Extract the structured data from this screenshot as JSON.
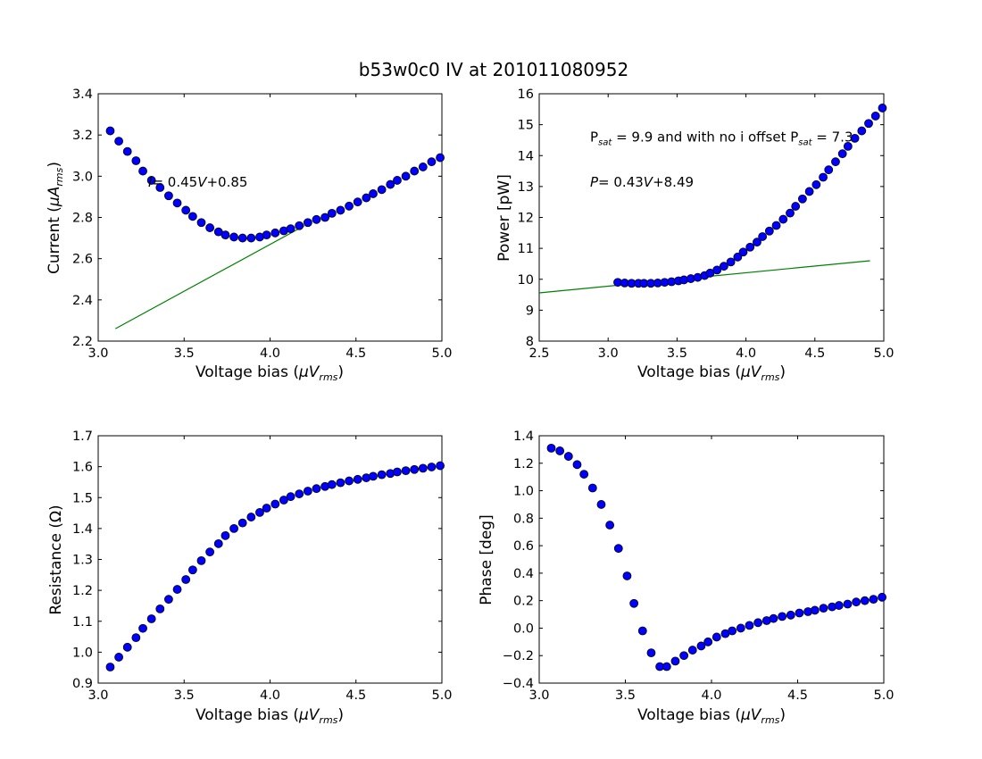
{
  "figure": {
    "title": "b53w0c0 IV at 201011080952"
  },
  "chart_data": [
    {
      "type": "scatter",
      "id": "iv",
      "xlabel": "Voltage bias ($\\mu V_{rms}$)",
      "ylabel": "Current ($\\mu A_{rms}$)",
      "xlim": [
        3.0,
        5.0
      ],
      "ylim": [
        2.2,
        3.4
      ],
      "xticks": [
        "3.0",
        "3.5",
        "4.0",
        "4.5",
        "5.0"
      ],
      "yticks": [
        "2.2",
        "2.4",
        "2.6",
        "2.8",
        "3.0",
        "3.2",
        "3.4"
      ],
      "series": [
        {
          "kind": "markers",
          "color": "#0000ff",
          "x": [
            3.07,
            3.12,
            3.17,
            3.22,
            3.26,
            3.31,
            3.36,
            3.41,
            3.46,
            3.51,
            3.55,
            3.6,
            3.65,
            3.7,
            3.74,
            3.79,
            3.84,
            3.89,
            3.94,
            3.98,
            4.03,
            4.08,
            4.12,
            4.17,
            4.22,
            4.27,
            4.32,
            4.36,
            4.41,
            4.46,
            4.51,
            4.56,
            4.6,
            4.65,
            4.7,
            4.74,
            4.79,
            4.84,
            4.89,
            4.94,
            4.99
          ],
          "y": [
            3.22,
            3.17,
            3.12,
            3.075,
            3.025,
            2.98,
            2.945,
            2.905,
            2.87,
            2.835,
            2.805,
            2.775,
            2.75,
            2.73,
            2.715,
            2.705,
            2.7,
            2.7,
            2.705,
            2.715,
            2.725,
            2.735,
            2.745,
            2.76,
            2.775,
            2.79,
            2.8,
            2.82,
            2.835,
            2.855,
            2.875,
            2.895,
            2.915,
            2.935,
            2.96,
            2.98,
            3.0,
            3.025,
            3.045,
            3.07,
            3.09
          ]
        },
        {
          "kind": "line",
          "color": "#008000",
          "x": [
            3.1,
            4.2
          ],
          "y": [
            2.26,
            2.76
          ]
        }
      ],
      "annotation": {
        "text": "I= 0.45V+0.85",
        "x": 3.3,
        "y": 2.95
      }
    },
    {
      "type": "scatter",
      "id": "power",
      "xlabel": "Voltage bias ($\\mu V_{rms}$)",
      "ylabel": "Power [pW]",
      "xlim": [
        2.5,
        5.0
      ],
      "ylim": [
        8,
        16
      ],
      "xticks": [
        "2.5",
        "3.0",
        "3.5",
        "4.0",
        "4.5",
        "5.0"
      ],
      "yticks": [
        "8",
        "9",
        "10",
        "11",
        "12",
        "13",
        "14",
        "15",
        "16"
      ],
      "series": [
        {
          "kind": "markers",
          "color": "#0000ff",
          "x": [
            3.07,
            3.12,
            3.17,
            3.22,
            3.26,
            3.31,
            3.36,
            3.41,
            3.46,
            3.51,
            3.55,
            3.6,
            3.65,
            3.7,
            3.74,
            3.79,
            3.84,
            3.89,
            3.94,
            3.98,
            4.03,
            4.08,
            4.12,
            4.17,
            4.22,
            4.27,
            4.32,
            4.36,
            4.41,
            4.46,
            4.51,
            4.56,
            4.6,
            4.65,
            4.7,
            4.74,
            4.79,
            4.84,
            4.89,
            4.94,
            4.99
          ],
          "y": [
            9.9,
            9.88,
            9.87,
            9.87,
            9.87,
            9.87,
            9.88,
            9.9,
            9.92,
            9.95,
            9.98,
            10.02,
            10.06,
            10.12,
            10.2,
            10.3,
            10.42,
            10.56,
            10.72,
            10.88,
            11.04,
            11.2,
            11.38,
            11.56,
            11.74,
            11.94,
            12.14,
            12.36,
            12.6,
            12.84,
            13.06,
            13.3,
            13.54,
            13.8,
            14.06,
            14.3,
            14.56,
            14.8,
            15.04,
            15.28,
            15.54
          ]
        },
        {
          "kind": "line",
          "color": "#008000",
          "x": [
            2.5,
            4.9
          ],
          "y": [
            9.56,
            10.6
          ]
        }
      ],
      "annotations": [
        {
          "text": "P_sat = 9.9 and with no i offset P_sat = 7.3",
          "x": 2.84,
          "y": 14.45
        },
        {
          "text": "P= 0.43V+8.49",
          "x": 2.84,
          "y": 13.0
        }
      ]
    },
    {
      "type": "scatter",
      "id": "resistance",
      "xlabel": "Voltage bias ($\\mu V_{rms}$)",
      "ylabel": "Resistance (Ω)",
      "xlim": [
        3.0,
        5.0
      ],
      "ylim": [
        0.9,
        1.7
      ],
      "xticks": [
        "3.0",
        "3.5",
        "4.0",
        "4.5",
        "5.0"
      ],
      "yticks": [
        "0.9",
        "1.0",
        "1.1",
        "1.2",
        "1.3",
        "1.4",
        "1.5",
        "1.6",
        "1.7"
      ],
      "series": [
        {
          "kind": "markers",
          "color": "#0000ff",
          "x": [
            3.07,
            3.12,
            3.17,
            3.22,
            3.26,
            3.31,
            3.36,
            3.41,
            3.46,
            3.51,
            3.55,
            3.6,
            3.65,
            3.7,
            3.74,
            3.79,
            3.84,
            3.89,
            3.94,
            3.98,
            4.03,
            4.08,
            4.12,
            4.17,
            4.22,
            4.27,
            4.32,
            4.36,
            4.41,
            4.46,
            4.51,
            4.56,
            4.6,
            4.65,
            4.7,
            4.74,
            4.79,
            4.84,
            4.89,
            4.94,
            4.99
          ],
          "y": [
            0.952,
            0.984,
            1.016,
            1.047,
            1.077,
            1.108,
            1.14,
            1.171,
            1.203,
            1.235,
            1.266,
            1.296,
            1.324,
            1.351,
            1.377,
            1.4,
            1.418,
            1.437,
            1.452,
            1.466,
            1.479,
            1.492,
            1.503,
            1.512,
            1.521,
            1.529,
            1.536,
            1.542,
            1.548,
            1.554,
            1.559,
            1.564,
            1.569,
            1.574,
            1.578,
            1.583,
            1.587,
            1.591,
            1.595,
            1.599,
            1.603
          ]
        }
      ]
    },
    {
      "type": "scatter",
      "id": "phase",
      "xlabel": "Voltage bias ($\\mu V_{rms}$)",
      "ylabel": "Phase [deg]",
      "xlim": [
        3.0,
        5.0
      ],
      "ylim": [
        -0.4,
        1.4
      ],
      "xticks": [
        "3.0",
        "3.5",
        "4.0",
        "4.5",
        "5.0"
      ],
      "yticks": [
        "−0.4",
        "−0.2",
        "0.0",
        "0.2",
        "0.4",
        "0.6",
        "0.8",
        "1.0",
        "1.2",
        "1.4"
      ],
      "series": [
        {
          "kind": "markers",
          "color": "#0000ff",
          "x": [
            3.07,
            3.12,
            3.17,
            3.22,
            3.26,
            3.31,
            3.36,
            3.41,
            3.46,
            3.51,
            3.55,
            3.6,
            3.65,
            3.7,
            3.74,
            3.79,
            3.84,
            3.89,
            3.94,
            3.98,
            4.03,
            4.08,
            4.12,
            4.17,
            4.22,
            4.27,
            4.32,
            4.36,
            4.41,
            4.46,
            4.51,
            4.56,
            4.6,
            4.65,
            4.7,
            4.74,
            4.79,
            4.84,
            4.89,
            4.94,
            4.99
          ],
          "y": [
            1.31,
            1.29,
            1.25,
            1.19,
            1.12,
            1.02,
            0.9,
            0.75,
            0.58,
            0.38,
            0.18,
            -0.02,
            -0.18,
            -0.28,
            -0.28,
            -0.24,
            -0.2,
            -0.16,
            -0.13,
            -0.1,
            -0.065,
            -0.04,
            -0.02,
            0.0,
            0.02,
            0.04,
            0.055,
            0.07,
            0.085,
            0.095,
            0.11,
            0.12,
            0.13,
            0.145,
            0.155,
            0.165,
            0.175,
            0.19,
            0.2,
            0.21,
            0.225
          ]
        }
      ]
    }
  ]
}
